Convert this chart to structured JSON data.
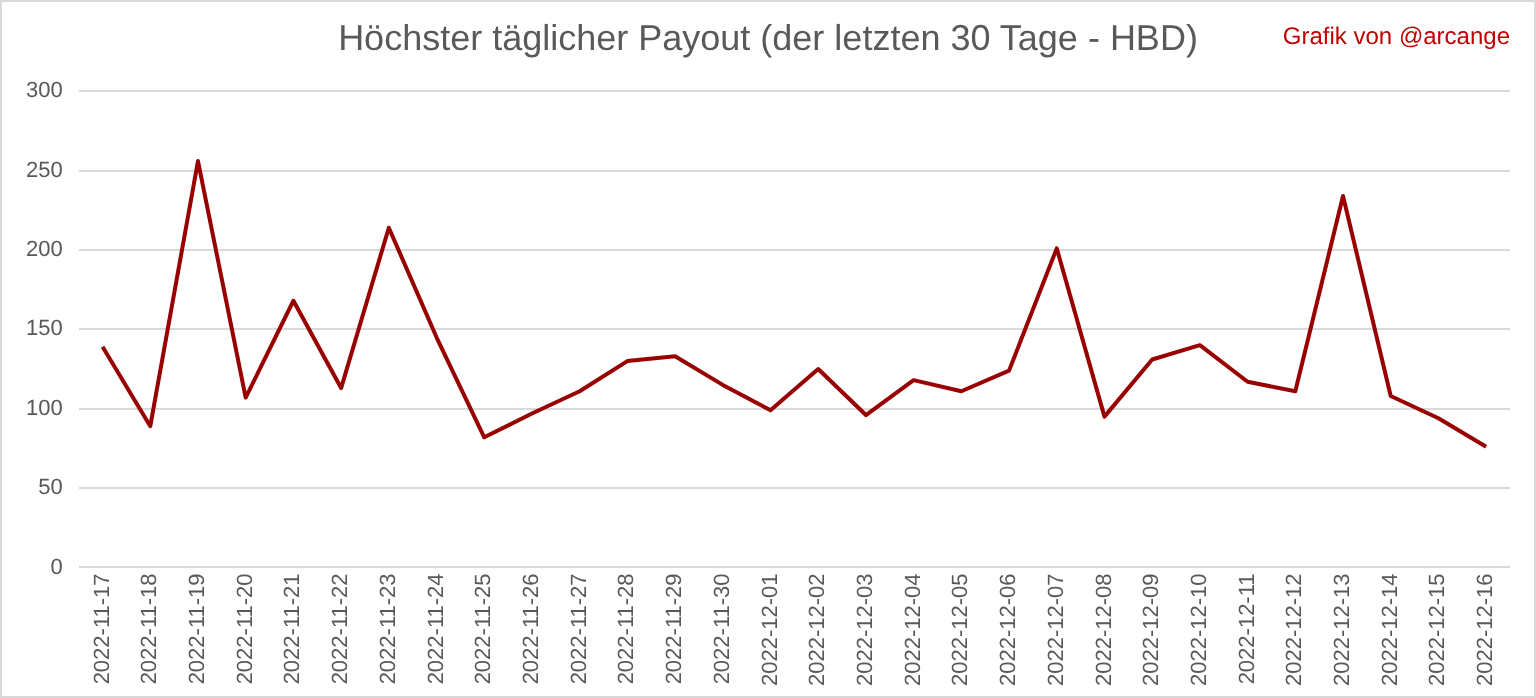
{
  "chart_data": {
    "type": "line",
    "title": "Höchster täglicher Payout (der letzten 30 Tage - HBD)",
    "annotations": [
      "Grafik von @arcange"
    ],
    "categories": [
      "2022-11-17",
      "2022-11-18",
      "2022-11-19",
      "2022-11-20",
      "2022-11-21",
      "2022-11-22",
      "2022-11-23",
      "2022-11-24",
      "2022-11-25",
      "2022-11-26",
      "2022-11-27",
      "2022-11-28",
      "2022-11-29",
      "2022-11-30",
      "2022-12-01",
      "2022-12-02",
      "2022-12-03",
      "2022-12-04",
      "2022-12-05",
      "2022-12-06",
      "2022-12-07",
      "2022-12-08",
      "2022-12-09",
      "2022-12-10",
      "2022-12-11",
      "2022-12-12",
      "2022-12-13",
      "2022-12-14",
      "2022-12-15",
      "2022-12-16"
    ],
    "series": [
      {
        "color": "#990000",
        "values": [
          139,
          89,
          256,
          107,
          168,
          113,
          214,
          145,
          82,
          97,
          111,
          130,
          133,
          115,
          99,
          125,
          96,
          118,
          111,
          124,
          201,
          95,
          131,
          140,
          117,
          111,
          234,
          108,
          94,
          76
        ]
      }
    ],
    "ylim": [
      0,
      300
    ],
    "yticks": [
      0,
      50,
      100,
      150,
      200,
      250,
      300
    ],
    "grid": "y",
    "legend": false,
    "marker": "none",
    "line_style": "solid"
  }
}
